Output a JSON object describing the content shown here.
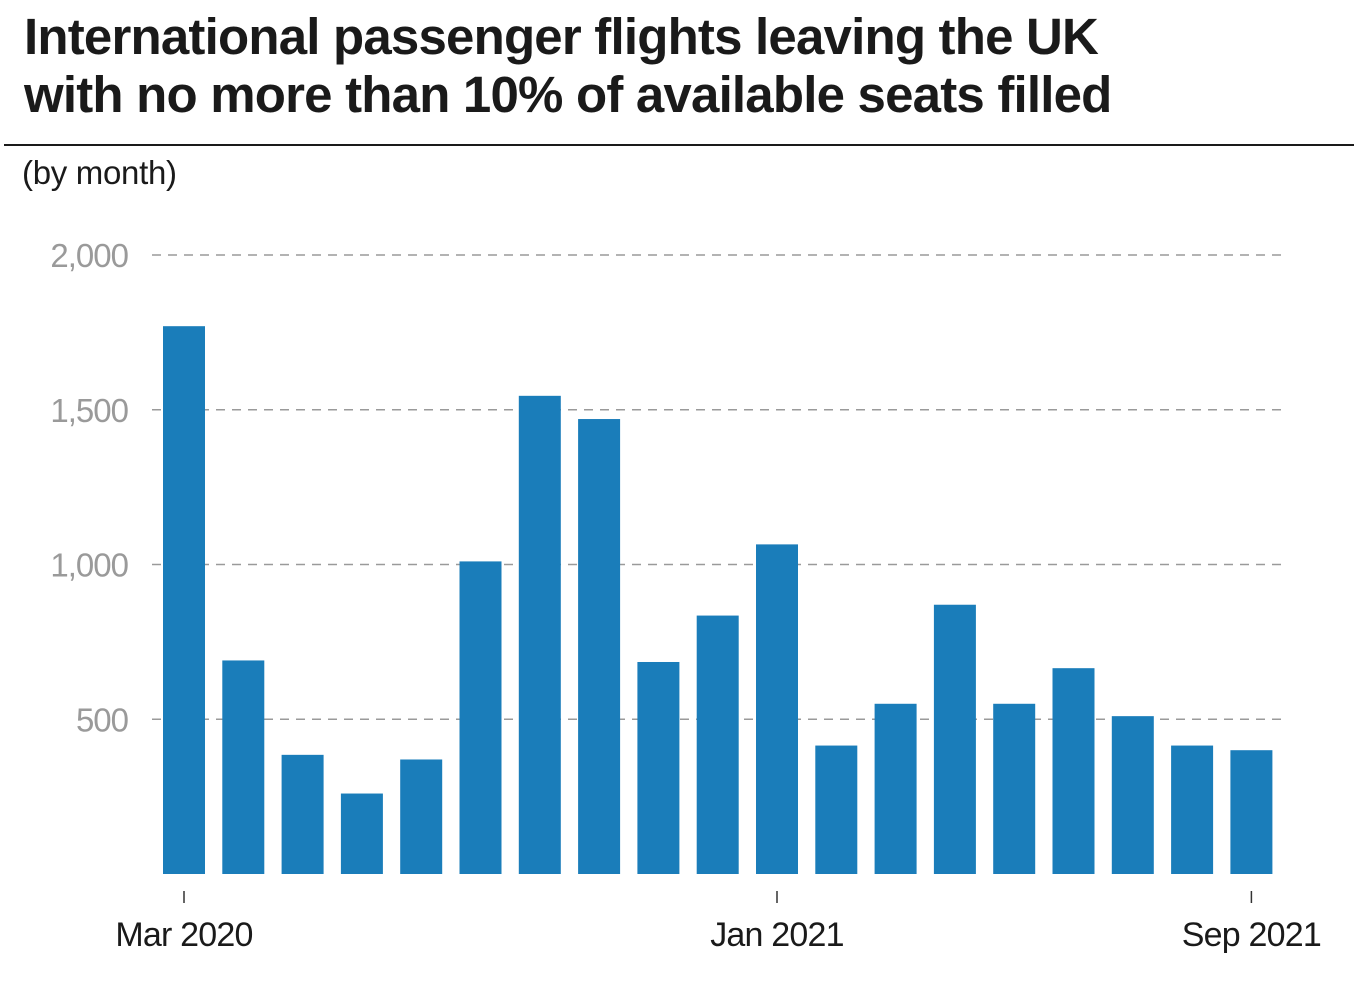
{
  "chart_data": {
    "type": "bar",
    "title": "International passenger flights leaving the UK\nwith no more than 10% of available seats filled",
    "subtitle": "(by month)",
    "categories": [
      "Mar 2020",
      "Apr 2020",
      "May 2020",
      "Jun 2020",
      "Jul 2020",
      "Aug 2020",
      "Sep 2020",
      "Oct 2020",
      "Nov 2020",
      "Dec 2020",
      "Jan 2021",
      "Feb 2021",
      "Mar 2021",
      "Apr 2021",
      "May 2021",
      "Jun 2021",
      "Jul 2021",
      "Aug 2021",
      "Sep 2021"
    ],
    "values": [
      1770,
      690,
      385,
      260,
      370,
      1010,
      1545,
      1470,
      685,
      835,
      1065,
      415,
      550,
      870,
      550,
      665,
      510,
      415,
      400
    ],
    "x_tick_labels": [
      {
        "category": "Mar 2020",
        "label": "Mar 2020"
      },
      {
        "category": "Jan 2021",
        "label": "Jan 2021"
      },
      {
        "category": "Sep 2021",
        "label": "Sep 2021"
      }
    ],
    "y_ticks": [
      {
        "value": 500,
        "label": "500"
      },
      {
        "value": 1000,
        "label": "1,000"
      },
      {
        "value": 1500,
        "label": "1,500"
      },
      {
        "value": 2000,
        "label": "2,000"
      }
    ],
    "ylim": [
      0,
      2000
    ],
    "xlabel": "",
    "ylabel": "",
    "grid": "horizontal dashed",
    "legend": "none",
    "colors": {
      "bar": "#1a7dba",
      "grid": "#9a9a9a",
      "tick_text": "#9a9a9a",
      "axis_text": "#1a1a1a"
    }
  }
}
